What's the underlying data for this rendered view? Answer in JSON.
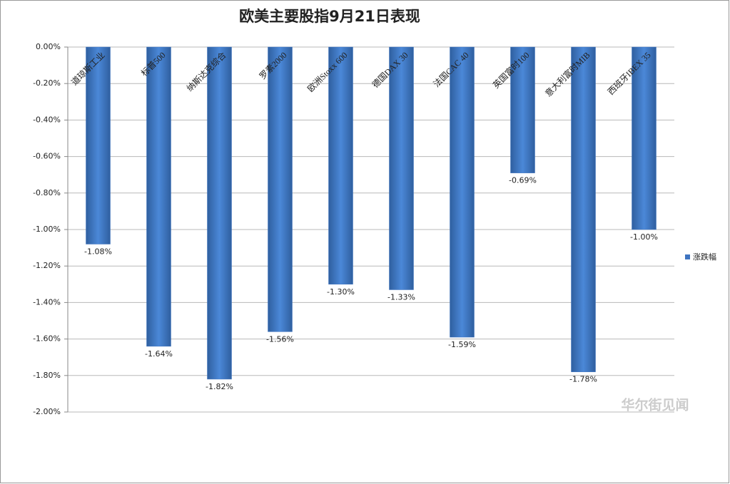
{
  "chart_data": {
    "type": "bar",
    "title": "欧美主要股指9月21日表现",
    "categories": [
      "道琼斯工业",
      "标普500",
      "纳斯达克综合",
      "罗素2000",
      "欧洲Stoxx 600",
      "德国DAX 30",
      "法国CAC 40",
      "英国富时100",
      "意大利富时MIB",
      "西班牙IBEX 35"
    ],
    "series": [
      {
        "name": "涨跌幅",
        "color": "#3f74c0",
        "values": [
          -1.08,
          -1.64,
          -1.82,
          -1.56,
          -1.3,
          -1.33,
          -1.59,
          -0.69,
          -1.78,
          -1.0
        ],
        "value_labels": [
          "-1.08%",
          "-1.64%",
          "-1.82%",
          "-1.56%",
          "-1.30%",
          "-1.33%",
          "-1.59%",
          "-0.69%",
          "-1.78%",
          "-1.00%"
        ]
      }
    ],
    "ylim": [
      -2,
      0
    ],
    "yticks": [
      {
        "value": 0,
        "label": "0.00%"
      },
      {
        "value": -0.2,
        "label": "-0.20%"
      },
      {
        "value": -0.4,
        "label": "-0.40%"
      },
      {
        "value": -0.6,
        "label": "-0.60%"
      },
      {
        "value": -0.8,
        "label": "-0.80%"
      },
      {
        "value": -1,
        "label": "-1.00%"
      },
      {
        "value": -1.2,
        "label": "-1.20%"
      },
      {
        "value": -1.4,
        "label": "-1.40%"
      },
      {
        "value": -1.6,
        "label": "-1.60%"
      },
      {
        "value": -1.8,
        "label": "-1.80%"
      },
      {
        "value": -2,
        "label": "-2.00%"
      }
    ],
    "grid": true,
    "legend": "right",
    "watermark": "华尔街见闻"
  }
}
